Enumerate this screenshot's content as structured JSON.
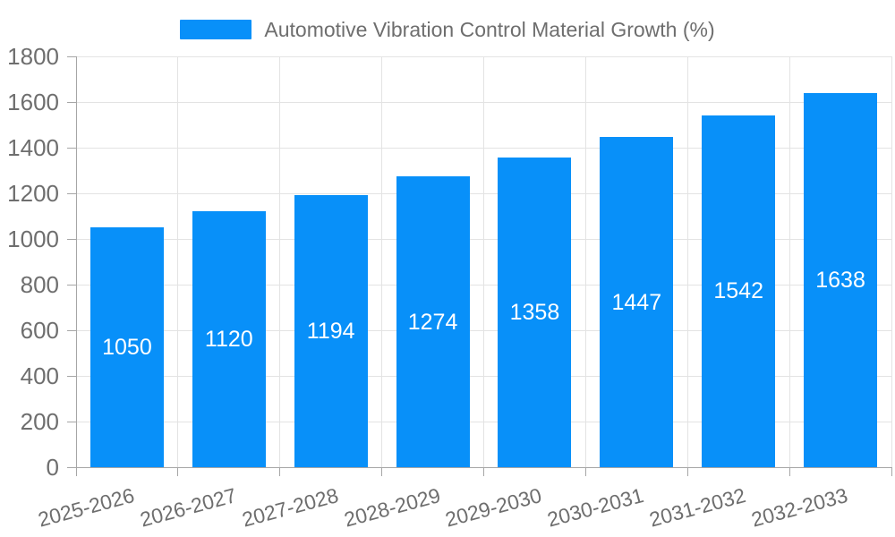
{
  "legend": {
    "label": "Automotive Vibration Control Material Growth (%)",
    "swatch_color": "#0890f9"
  },
  "chart_data": {
    "type": "bar",
    "title": "Automotive Vibration Control Material Growth (%)",
    "categories": [
      "2025-2026",
      "2026-2027",
      "2027-2028",
      "2028-2029",
      "2029-2030",
      "2030-2031",
      "2031-2032",
      "2032-2033"
    ],
    "series": [
      {
        "name": "Automotive Vibration Control Material Growth (%)",
        "values": [
          1050,
          1120,
          1194,
          1274,
          1358,
          1447,
          1542,
          1638
        ],
        "color": "#0890f9"
      }
    ],
    "xlabel": "",
    "ylabel": "",
    "ylim": [
      0,
      1800
    ],
    "yticks": [
      0,
      200,
      400,
      600,
      800,
      1000,
      1200,
      1400,
      1600,
      1800
    ],
    "grid": true,
    "legend_position": "top",
    "bar_label_color": "#ffffff",
    "axis_text_color": "#6e6e6e",
    "grid_color": "#e3e3e3",
    "axis_line_color": "#a6a6a6"
  }
}
